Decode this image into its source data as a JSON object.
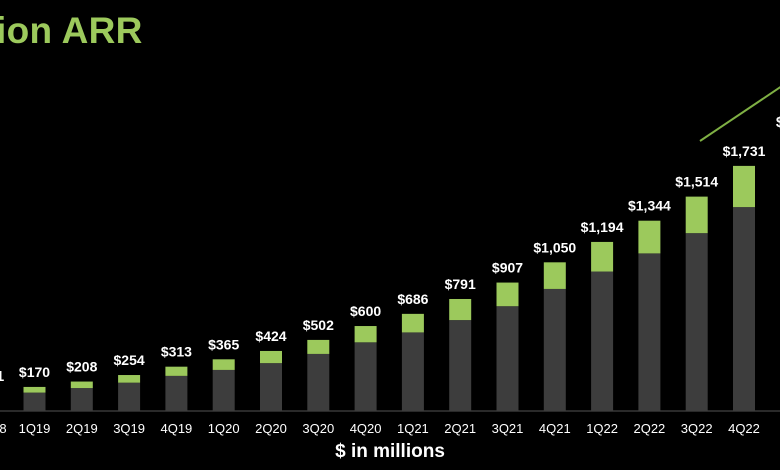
{
  "title": "ion ARR",
  "units_label": "$ in millions",
  "colors": {
    "base": "#3d3d3d",
    "growth": "#9cc95c",
    "text": "#ffffff",
    "trend": "#7fb044",
    "background": "#000000"
  },
  "chart_data": {
    "type": "bar",
    "stacked": true,
    "title": "ion ARR",
    "xlabel": "$ in millions",
    "categories": [
      "1Q19",
      "2Q19",
      "3Q19",
      "4Q19",
      "1Q20",
      "2Q20",
      "3Q20",
      "4Q20",
      "1Q21",
      "2Q21",
      "3Q21",
      "4Q21",
      "1Q22",
      "2Q22",
      "3Q22",
      "4Q22"
    ],
    "value_labels": [
      "$170",
      "$208",
      "$254",
      "$313",
      "$365",
      "$424",
      "$502",
      "$600",
      "$686",
      "$791",
      "$907",
      "$1,050",
      "$1,194",
      "$1,344",
      "$1,514",
      "$1,731"
    ],
    "totals": [
      170,
      208,
      254,
      313,
      365,
      424,
      502,
      600,
      686,
      791,
      907,
      1050,
      1194,
      1344,
      1514,
      1731
    ],
    "series": [
      {
        "values": [
          130,
          162,
          200,
          248,
          290,
          338,
          403,
          485,
          555,
          642,
          740,
          862,
          985,
          1113,
          1256,
          1440
        ]
      },
      {
        "values": [
          40,
          46,
          54,
          65,
          75,
          86,
          99,
          115,
          131,
          149,
          167,
          188,
          209,
          231,
          258,
          291
        ]
      }
    ],
    "partial_left_tick": "8",
    "partial_left_label": "1",
    "partial_right_label": "$",
    "grid": false,
    "legend": "none"
  }
}
